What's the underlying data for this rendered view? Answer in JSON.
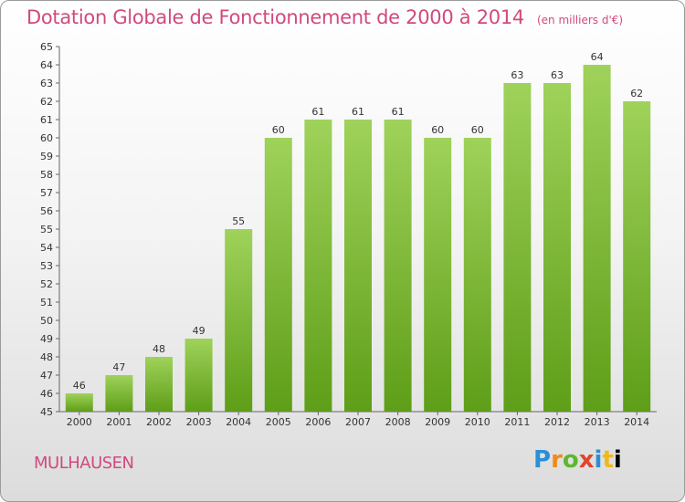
{
  "header": {
    "title": "Dotation Globale de Fonctionnement de 2000 à 2014",
    "unit": "(en milliers d'€)"
  },
  "footer": {
    "commune": "MULHAUSEN",
    "logo_letters": [
      "P",
      "r",
      "o",
      "x",
      "i",
      "t",
      "i"
    ]
  },
  "colors": {
    "accent": "#d04a7e",
    "bar_top": "#9fd25a",
    "bar_bottom": "#5e9e18"
  },
  "chart_data": {
    "type": "bar",
    "title": "Dotation Globale de Fonctionnement de 2000 à 2014",
    "subtitle": "(en milliers d'€)",
    "categories": [
      "2000",
      "2001",
      "2002",
      "2003",
      "2004",
      "2005",
      "2006",
      "2007",
      "2008",
      "2009",
      "2010",
      "2011",
      "2012",
      "2013",
      "2014"
    ],
    "values": [
      46,
      47,
      48,
      49,
      55,
      60,
      61,
      61,
      61,
      60,
      60,
      63,
      63,
      64,
      62
    ],
    "xlabel": "",
    "ylabel": "",
    "ylim": [
      45,
      65
    ],
    "yticks": [
      45,
      46,
      47,
      48,
      49,
      50,
      51,
      52,
      53,
      54,
      55,
      56,
      57,
      58,
      59,
      60,
      61,
      62,
      63,
      64,
      65
    ],
    "grid": false,
    "data_labels": true
  }
}
